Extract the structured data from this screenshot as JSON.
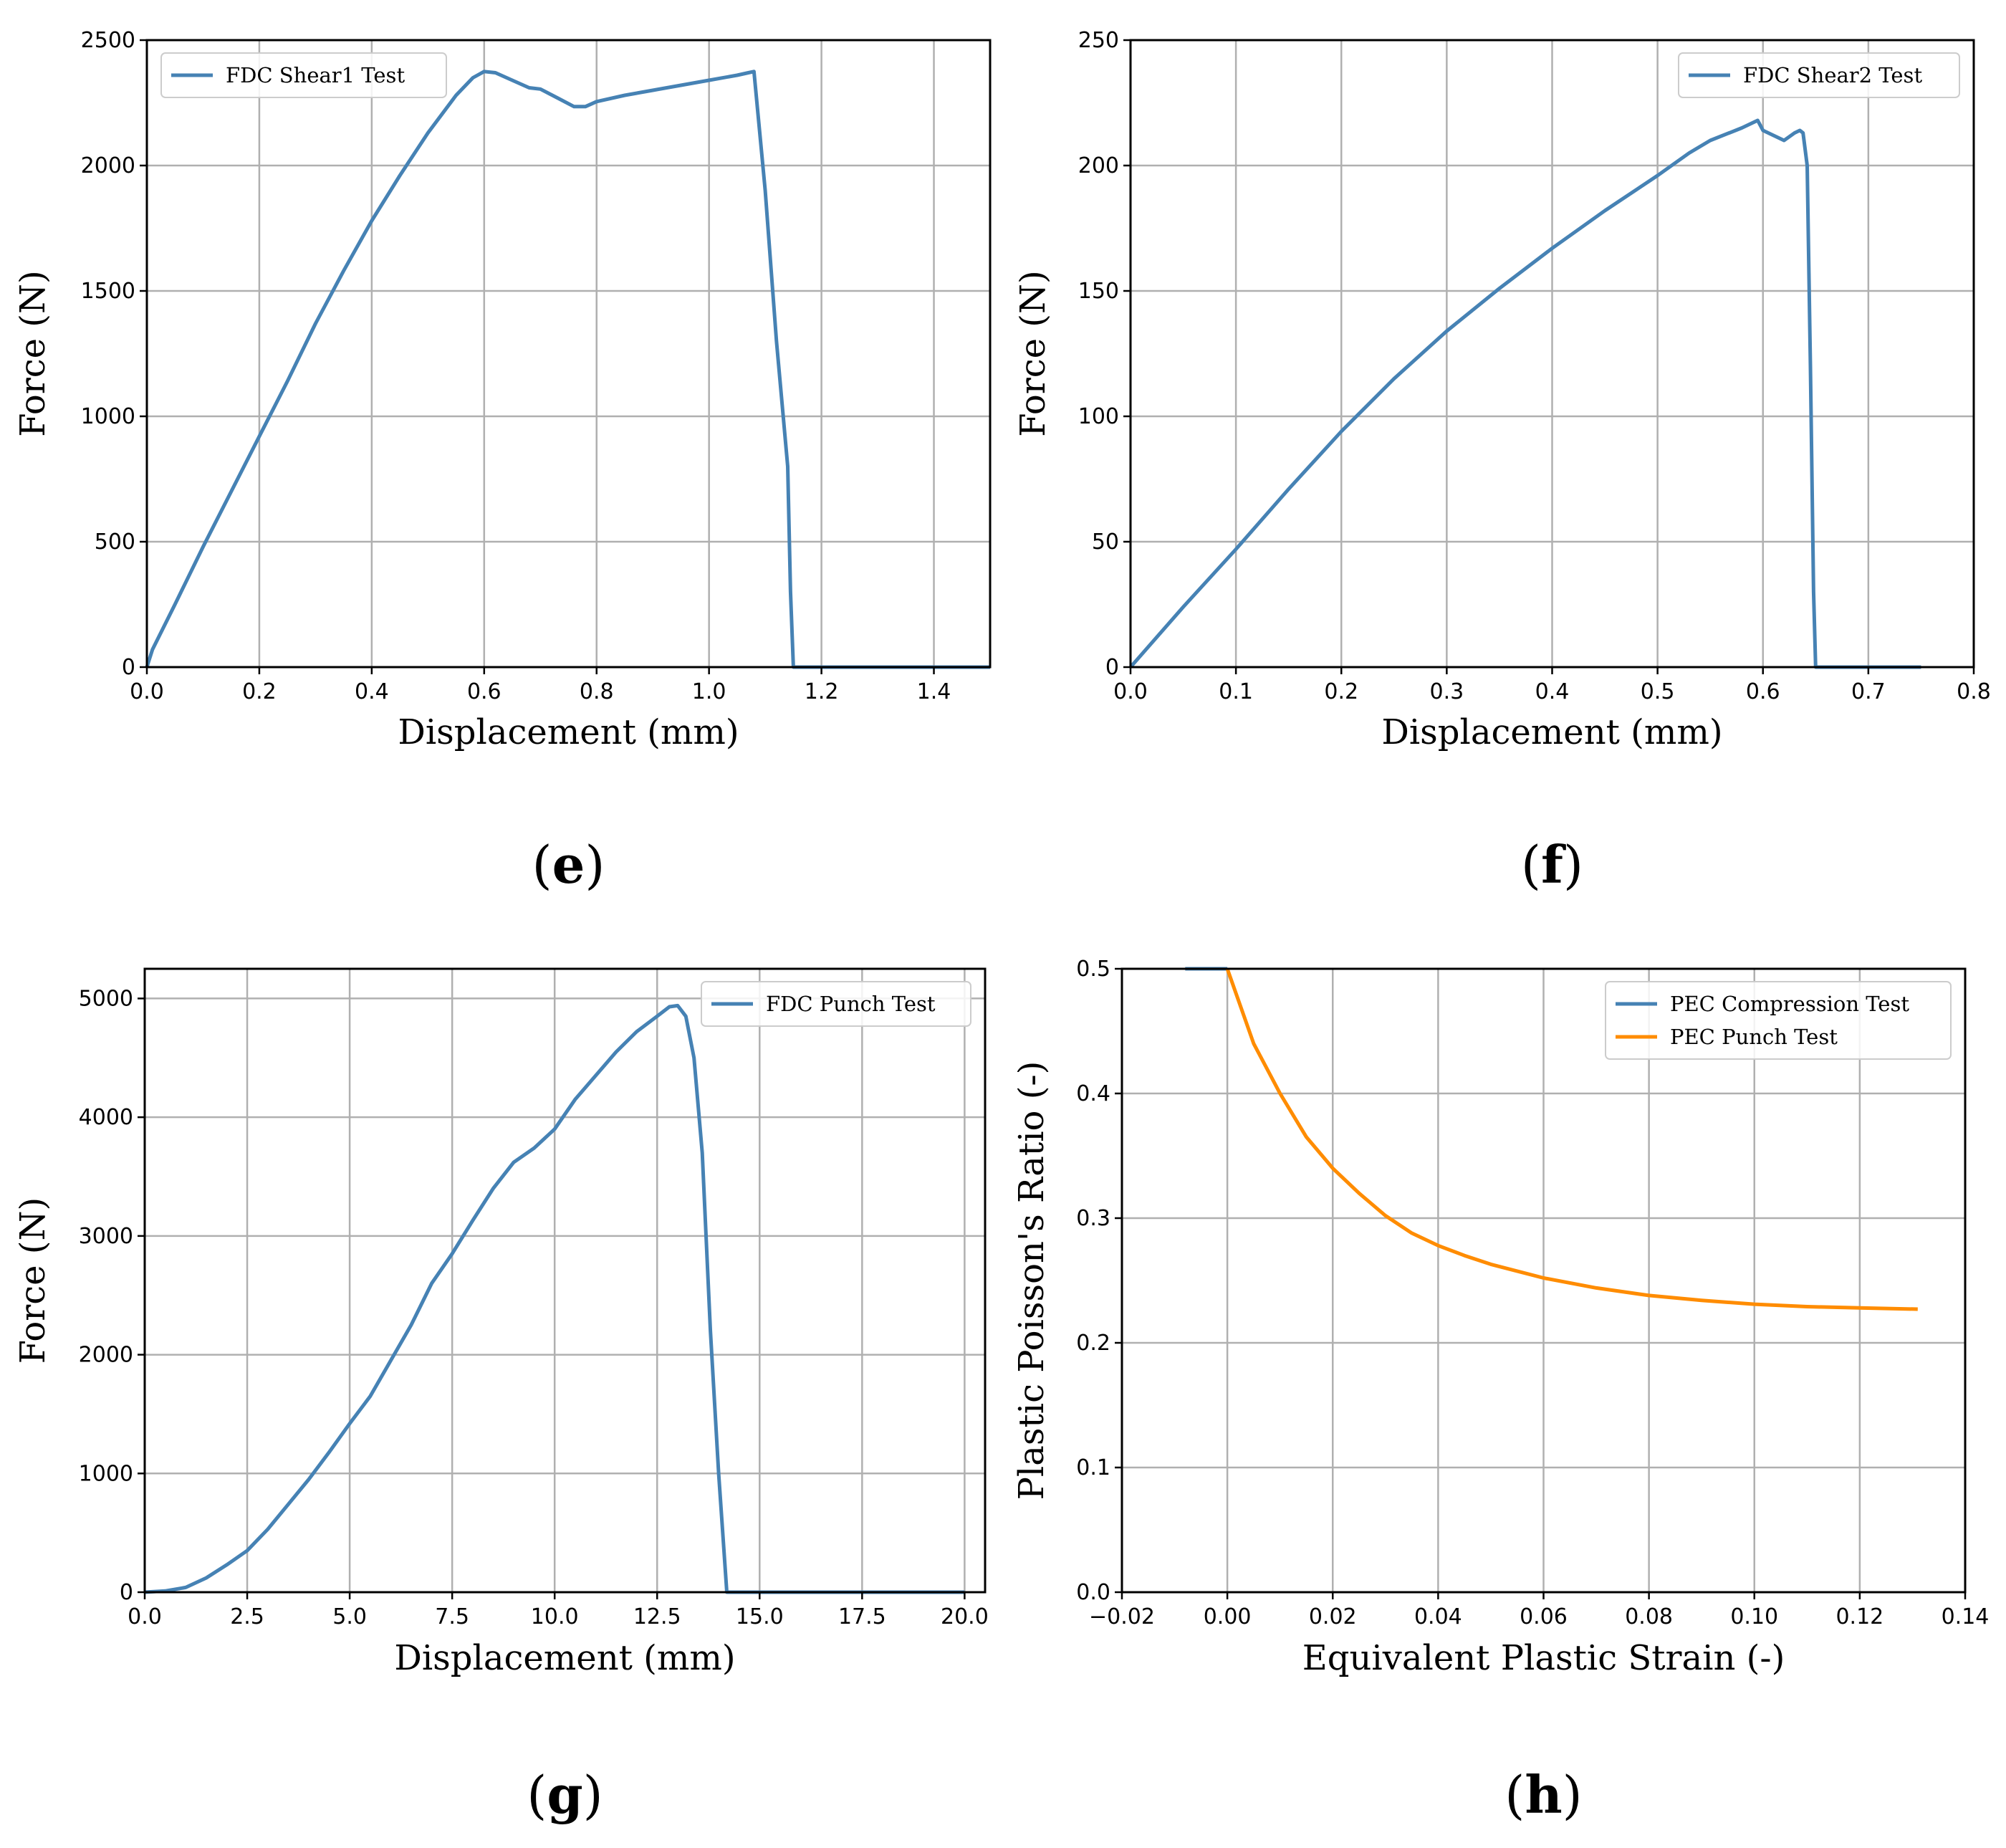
{
  "chart_data": [
    {
      "id": "e",
      "type": "line",
      "panel_label": "e",
      "title": "",
      "xlabel": "Displacement (mm)",
      "ylabel": "Force (N)",
      "xlim": [
        0,
        1.5
      ],
      "ylim": [
        0,
        2500
      ],
      "xticks": [
        0.0,
        0.2,
        0.4,
        0.6,
        0.8,
        1.0,
        1.2,
        1.4
      ],
      "xtick_labels": [
        "0.0",
        "0.2",
        "0.4",
        "0.6",
        "0.8",
        "1.0",
        "1.2",
        "1.4"
      ],
      "yticks": [
        0,
        500,
        1000,
        1500,
        2000,
        2500
      ],
      "ytick_labels": [
        "0",
        "500",
        "1000",
        "1500",
        "2000",
        "2500"
      ],
      "grid": true,
      "legend_position": "top-left",
      "series": [
        {
          "name": "FDC Shear1 Test",
          "color": "#4682b4",
          "x": [
            0.0,
            0.01,
            0.05,
            0.1,
            0.15,
            0.2,
            0.25,
            0.3,
            0.35,
            0.4,
            0.45,
            0.5,
            0.55,
            0.58,
            0.6,
            0.62,
            0.65,
            0.68,
            0.7,
            0.73,
            0.76,
            0.78,
            0.8,
            0.85,
            0.9,
            0.95,
            1.0,
            1.05,
            1.07,
            1.08,
            1.1,
            1.12,
            1.14,
            1.145,
            1.15,
            1.5
          ],
          "y": [
            0,
            70,
            250,
            480,
            700,
            920,
            1140,
            1370,
            1580,
            1780,
            1960,
            2130,
            2280,
            2350,
            2375,
            2370,
            2340,
            2310,
            2305,
            2270,
            2235,
            2235,
            2255,
            2280,
            2300,
            2320,
            2340,
            2360,
            2370,
            2375,
            1900,
            1300,
            800,
            300,
            0,
            0
          ]
        }
      ]
    },
    {
      "id": "f",
      "type": "line",
      "panel_label": "f",
      "title": "",
      "xlabel": "Displacement (mm)",
      "ylabel": "Force  (N)",
      "xlim": [
        0,
        0.8
      ],
      "ylim": [
        0,
        250
      ],
      "xticks": [
        0.0,
        0.1,
        0.2,
        0.3,
        0.4,
        0.5,
        0.6,
        0.7,
        0.8
      ],
      "xtick_labels": [
        "0.0",
        "0.1",
        "0.2",
        "0.3",
        "0.4",
        "0.5",
        "0.6",
        "0.7",
        "0.8"
      ],
      "yticks": [
        0,
        50,
        100,
        150,
        200,
        250
      ],
      "ytick_labels": [
        "0",
        "50",
        "100",
        "150",
        "200",
        "250"
      ],
      "grid": true,
      "legend_position": "top-right",
      "series": [
        {
          "name": "FDC Shear2 Test",
          "color": "#4682b4",
          "x": [
            0.0,
            0.05,
            0.1,
            0.15,
            0.2,
            0.25,
            0.3,
            0.35,
            0.4,
            0.45,
            0.5,
            0.53,
            0.55,
            0.58,
            0.595,
            0.6,
            0.61,
            0.62,
            0.63,
            0.635,
            0.638,
            0.642,
            0.645,
            0.648,
            0.65,
            0.75
          ],
          "y": [
            0,
            24,
            47,
            71,
            94,
            115,
            134,
            151,
            167,
            182,
            196,
            205,
            210,
            215,
            218,
            214,
            212,
            210,
            213,
            214,
            213,
            200,
            120,
            30,
            0,
            0
          ]
        }
      ]
    },
    {
      "id": "g",
      "type": "line",
      "panel_label": "g",
      "title": "",
      "xlabel": "Displacement (mm)",
      "ylabel": "Force (N)",
      "xlim": [
        0,
        20.5
      ],
      "ylim": [
        0,
        5250
      ],
      "xticks": [
        0.0,
        2.5,
        5.0,
        7.5,
        10.0,
        12.5,
        15.0,
        17.5,
        20.0
      ],
      "xtick_labels": [
        "0.0",
        "2.5",
        "5.0",
        "7.5",
        "10.0",
        "12.5",
        "15.0",
        "17.5",
        "20.0"
      ],
      "yticks": [
        0,
        1000,
        2000,
        3000,
        4000,
        5000
      ],
      "ytick_labels": [
        "0",
        "1000",
        "2000",
        "3000",
        "4000",
        "5000"
      ],
      "grid": true,
      "legend_position": "top-right",
      "series": [
        {
          "name": "FDC Punch Test",
          "color": "#4682b4",
          "x": [
            0.0,
            0.5,
            1.0,
            1.5,
            2.0,
            2.5,
            3.0,
            3.5,
            4.0,
            4.5,
            5.0,
            5.5,
            6.0,
            6.5,
            7.0,
            7.5,
            8.0,
            8.5,
            9.0,
            9.5,
            10.0,
            10.5,
            11.0,
            11.5,
            12.0,
            12.5,
            12.8,
            13.0,
            13.2,
            13.4,
            13.6,
            13.8,
            14.0,
            14.2,
            20.0
          ],
          "y": [
            0,
            10,
            40,
            120,
            230,
            350,
            530,
            740,
            950,
            1180,
            1420,
            1650,
            1950,
            2250,
            2600,
            2850,
            3130,
            3400,
            3620,
            3740,
            3900,
            4150,
            4350,
            4550,
            4720,
            4850,
            4930,
            4940,
            4850,
            4500,
            3700,
            2200,
            1000,
            0,
            0
          ]
        }
      ]
    },
    {
      "id": "h",
      "type": "line",
      "panel_label": "h",
      "title": "",
      "xlabel": "Equivalent Plastic Strain (-)",
      "ylabel": "Plastic Poisson's Ratio (-)",
      "xlim": [
        -0.02,
        0.14
      ],
      "ylim": [
        0.0,
        0.5
      ],
      "xticks": [
        -0.02,
        0.0,
        0.02,
        0.04,
        0.06,
        0.08,
        0.1,
        0.12,
        0.14
      ],
      "xtick_labels": [
        "−0.02",
        "0.00",
        "0.02",
        "0.04",
        "0.06",
        "0.08",
        "0.10",
        "0.12",
        "0.14"
      ],
      "yticks": [
        0.0,
        0.1,
        0.2,
        0.3,
        0.4,
        0.5
      ],
      "ytick_labels": [
        "0.0",
        "0.1",
        "0.2",
        "0.3",
        "0.4",
        "0.5"
      ],
      "grid": true,
      "legend_position": "top-right",
      "series": [
        {
          "name": "PEC Compression Test",
          "color": "#4682b4",
          "x": [
            -0.008,
            0.0
          ],
          "y": [
            0.5,
            0.5
          ]
        },
        {
          "name": "PEC Punch Test",
          "color": "#ff8c00",
          "x": [
            0.0,
            0.005,
            0.01,
            0.015,
            0.02,
            0.025,
            0.03,
            0.035,
            0.04,
            0.045,
            0.05,
            0.06,
            0.07,
            0.08,
            0.09,
            0.1,
            0.11,
            0.12,
            0.131
          ],
          "y": [
            0.5,
            0.44,
            0.4,
            0.365,
            0.34,
            0.32,
            0.302,
            0.288,
            0.278,
            0.27,
            0.263,
            0.252,
            0.244,
            0.238,
            0.234,
            0.231,
            0.229,
            0.228,
            0.227
          ]
        }
      ]
    }
  ]
}
